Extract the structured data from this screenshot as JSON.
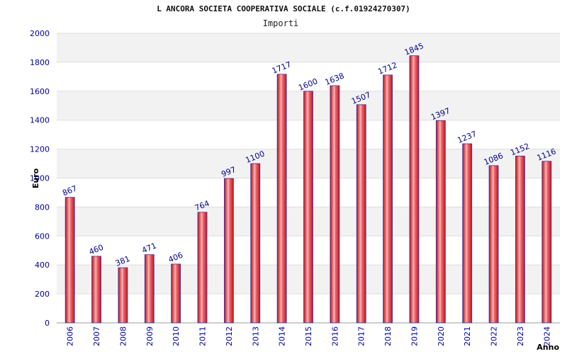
{
  "chart_data": {
    "type": "bar",
    "title": "L ANCORA SOCIETA COOPERATIVA SOCIALE (c.f.01924270307)",
    "subtitle": "Importi",
    "xlabel": "Anno",
    "ylabel": "Euro",
    "categories": [
      "2006",
      "2007",
      "2008",
      "2009",
      "2010",
      "2011",
      "2012",
      "2013",
      "2014",
      "2015",
      "2016",
      "2017",
      "2018",
      "2019",
      "2020",
      "2021",
      "2022",
      "2023",
      "2024"
    ],
    "values": [
      867,
      460,
      381,
      471,
      406,
      764,
      997,
      1100,
      1717,
      1600,
      1638,
      1507,
      1712,
      1845,
      1397,
      1237,
      1086,
      1152,
      1116
    ],
    "ylim": [
      0,
      2000
    ],
    "yticks": [
      0,
      200,
      400,
      600,
      800,
      1000,
      1200,
      1400,
      1600,
      1800,
      2000
    ],
    "grid": true,
    "legend": "none",
    "colors": {
      "bar_fill": "#e8222d",
      "bar_highlight": "#ffb0b0",
      "bar_edge": "#3333aa",
      "band_dark": "#f2f2f2",
      "band_light": "#ffffff",
      "tick_text": "#0000a0",
      "label_text": "#00008b"
    }
  }
}
